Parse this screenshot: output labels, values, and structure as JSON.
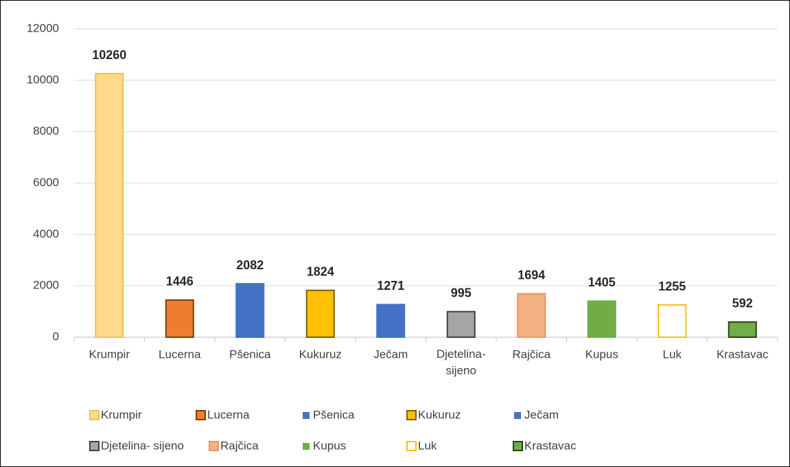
{
  "chart_data": {
    "type": "bar",
    "categories": [
      "Krumpir",
      "Lucerna",
      "Pšenica",
      "Kukuruz",
      "Ječam",
      "Djetelina-sijeno",
      "Rajčica",
      "Kupus",
      "Luk",
      "Krastavac"
    ],
    "values": [
      10260,
      1446,
      2082,
      1824,
      1271,
      995,
      1694,
      1405,
      1255,
      592
    ],
    "colors": [
      "#ffd98c",
      "#ed7d31",
      "#4472c4",
      "#ffc000",
      "#4472c4",
      "#a5a5a5",
      "#f4b183",
      "#70ad47",
      "#ffffff",
      "#70ad47"
    ],
    "strokes": [
      "#f2c14e",
      "#7b3f00",
      "#4472c4",
      "#7f5f00",
      "#4472c4",
      "#404040",
      "#e8946c",
      "#70ad47",
      "#ffc000",
      "#254117"
    ],
    "legend": [
      "Krumpir",
      "Lucerna",
      "Pšenica",
      "Kukuruz",
      "Ječam",
      "Djetelina- sijeno",
      "Rajčica",
      "Kupus",
      "Luk",
      "Krastavac"
    ],
    "ylim": [
      0,
      12000
    ],
    "yticks": [
      0,
      2000,
      4000,
      6000,
      8000,
      10000,
      12000
    ],
    "grid": true
  }
}
